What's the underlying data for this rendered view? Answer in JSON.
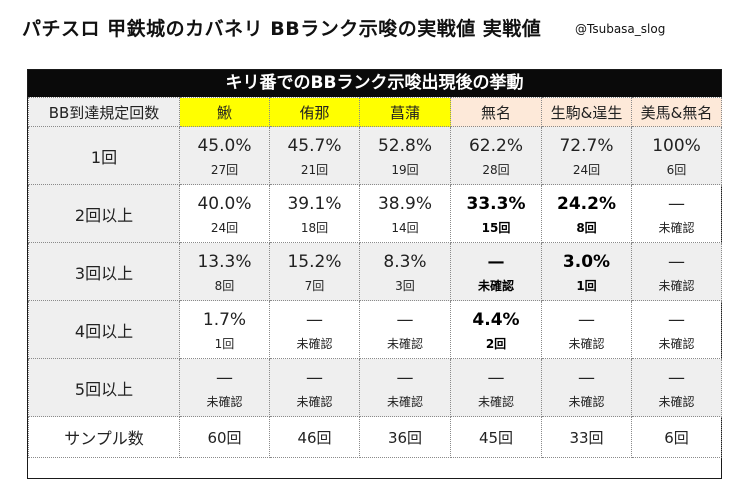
{
  "title": "パチスロ 甲鉄城のカバネリ BBランク示唆の実戦値 実戦値",
  "credit": "@Tsubasa_slog",
  "banner": "キリ番でのBBランク示唆出現後の挙動",
  "colors": {
    "yellow": "#ffff00",
    "peach": "#fde9d9",
    "gray": "#efefef",
    "banner": "#0a0a0a"
  },
  "headers": [
    "BB到達規定回数",
    "鰍",
    "侑那",
    "菖蒲",
    "無名",
    "生駒&逞生",
    "美馬&無名"
  ],
  "rows": [
    {
      "label": "1回",
      "cells": [
        {
          "pct": "45.0%",
          "count": "27回"
        },
        {
          "pct": "45.7%",
          "count": "21回"
        },
        {
          "pct": "52.8%",
          "count": "19回"
        },
        {
          "pct": "62.2%",
          "count": "28回"
        },
        {
          "pct": "72.7%",
          "count": "24回"
        },
        {
          "pct": "100%",
          "count": "6回"
        }
      ]
    },
    {
      "label": "2回以上",
      "cells": [
        {
          "pct": "40.0%",
          "count": "24回"
        },
        {
          "pct": "39.1%",
          "count": "18回"
        },
        {
          "pct": "38.9%",
          "count": "14回"
        },
        {
          "pct": "33.3%",
          "count": "15回",
          "bold": true
        },
        {
          "pct": "24.2%",
          "count": "8回",
          "bold": true
        },
        {
          "pct": "—",
          "count": "未確認"
        }
      ]
    },
    {
      "label": "3回以上",
      "cells": [
        {
          "pct": "13.3%",
          "count": "8回"
        },
        {
          "pct": "15.2%",
          "count": "7回"
        },
        {
          "pct": "8.3%",
          "count": "3回"
        },
        {
          "pct": "—",
          "count": "未確認",
          "bold": true
        },
        {
          "pct": "3.0%",
          "count": "1回",
          "bold": true
        },
        {
          "pct": "—",
          "count": "未確認"
        }
      ]
    },
    {
      "label": "4回以上",
      "cells": [
        {
          "pct": "1.7%",
          "count": "1回"
        },
        {
          "pct": "—",
          "count": "未確認"
        },
        {
          "pct": "—",
          "count": "未確認"
        },
        {
          "pct": "4.4%",
          "count": "2回",
          "bold": true
        },
        {
          "pct": "—",
          "count": "未確認"
        },
        {
          "pct": "—",
          "count": "未確認"
        }
      ]
    },
    {
      "label": "5回以上",
      "cells": [
        {
          "pct": "—",
          "count": "未確認"
        },
        {
          "pct": "—",
          "count": "未確認"
        },
        {
          "pct": "—",
          "count": "未確認"
        },
        {
          "pct": "—",
          "count": "未確認"
        },
        {
          "pct": "—",
          "count": "未確認"
        },
        {
          "pct": "—",
          "count": "未確認"
        }
      ]
    }
  ],
  "sample": {
    "label": "サンプル数",
    "values": [
      "60回",
      "46回",
      "36回",
      "45回",
      "33回",
      "6回"
    ]
  }
}
